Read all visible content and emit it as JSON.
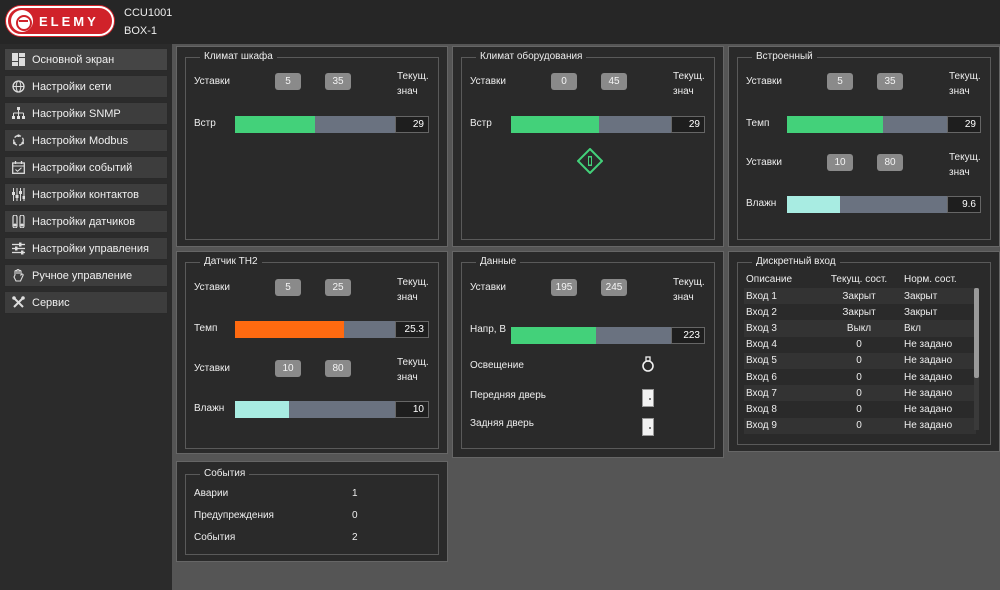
{
  "header": {
    "logo_text": "ELEMY",
    "device_id": "CCU1001",
    "device_box": "BOX-1"
  },
  "sidebar": {
    "items": [
      {
        "label": "Основной экран",
        "icon": "dashboard-icon"
      },
      {
        "label": "Настройки сети",
        "icon": "globe-icon"
      },
      {
        "label": "Настройки SNMP",
        "icon": "network-tree-icon"
      },
      {
        "label": "Настройки Modbus",
        "icon": "refresh-cycle-icon"
      },
      {
        "label": "Настройки событий",
        "icon": "calendar-icon"
      },
      {
        "label": "Настройки контактов",
        "icon": "contacts-icon"
      },
      {
        "label": "Настройки датчиков",
        "icon": "sensors-icon"
      },
      {
        "label": "Настройки управления",
        "icon": "sliders-icon"
      },
      {
        "label": "Ручное управление",
        "icon": "hand-icon"
      },
      {
        "label": "Сервис",
        "icon": "tools-icon"
      }
    ]
  },
  "cabinet": {
    "title": "Климат шкафа",
    "setpoints_label": "Уставки",
    "sp_low": "5",
    "sp_high": "35",
    "cur_label": "Текущ. знач",
    "sensor_label": "Встр",
    "value": "29",
    "fill": 0.5
  },
  "equipment": {
    "title": "Климат оборудования",
    "setpoints_label": "Уставки",
    "sp_low": "0",
    "sp_high": "45",
    "cur_label": "Текущ. знач",
    "sensor_label": "Встр",
    "value": "29",
    "fill": 0.55
  },
  "builtin": {
    "title": "Встроенный",
    "setpoints_label": "Уставки",
    "t_low": "5",
    "t_high": "35",
    "cur_label": "Текущ. знач",
    "temp_label": "Темп",
    "temp_value": "29",
    "temp_fill": 0.6,
    "h_setpoints_label": "Уставки",
    "h_low": "10",
    "h_high": "80",
    "hum_label": "Влажн",
    "hum_value": "9.6",
    "hum_fill": 0.33
  },
  "th2": {
    "title": "Датчик TH2",
    "setpoints_label": "Уставки",
    "t_low": "5",
    "t_high": "25",
    "cur_label": "Текущ. знач",
    "temp_label": "Темп",
    "temp_value": "25.3",
    "temp_fill": 0.68,
    "h_setpoints_label": "Уставки",
    "h_low": "10",
    "h_high": "80",
    "hum_label": "Влажн",
    "hum_value": "10",
    "hum_fill": 0.34
  },
  "data": {
    "title": "Данные",
    "setpoints_label": "Уставки",
    "v_low": "195",
    "v_high": "245",
    "cur_label": "Текущ. знач",
    "voltage_label": "Напр, В",
    "voltage_value": "223",
    "voltage_fill": 0.53,
    "light_label": "Освещение",
    "front_door_label": "Передняя дверь",
    "back_door_label": "Задняя дверь"
  },
  "discrete": {
    "title": "Дискретный вход",
    "headers": [
      "Описание",
      "Текущ. сост.",
      "Норм. сост."
    ],
    "rows": [
      [
        "Вход 1",
        "Закрыт",
        "Закрыт"
      ],
      [
        "Вход 2",
        "Закрыт",
        "Закрыт"
      ],
      [
        "Вход 3",
        "Выкл",
        "Вкл"
      ],
      [
        "Вход 4",
        "0",
        "Не задано"
      ],
      [
        "Вход 5",
        "0",
        "Не задано"
      ],
      [
        "Вход 6",
        "0",
        "Не задано"
      ],
      [
        "Вход 7",
        "0",
        "Не задано"
      ],
      [
        "Вход 8",
        "0",
        "Не задано"
      ],
      [
        "Вход 9",
        "0",
        "Не задано"
      ]
    ]
  },
  "events": {
    "title": "События",
    "rows": [
      {
        "label": "Аварии",
        "value": "1"
      },
      {
        "label": "Предупреждения",
        "value": "0"
      },
      {
        "label": "События",
        "value": "2"
      }
    ]
  },
  "colors": {
    "green": "#43d17a",
    "orange": "#ff6a10",
    "cyan": "#a8ece2",
    "bar_bg": "#6a7280",
    "accent_red": "#d0222a"
  }
}
